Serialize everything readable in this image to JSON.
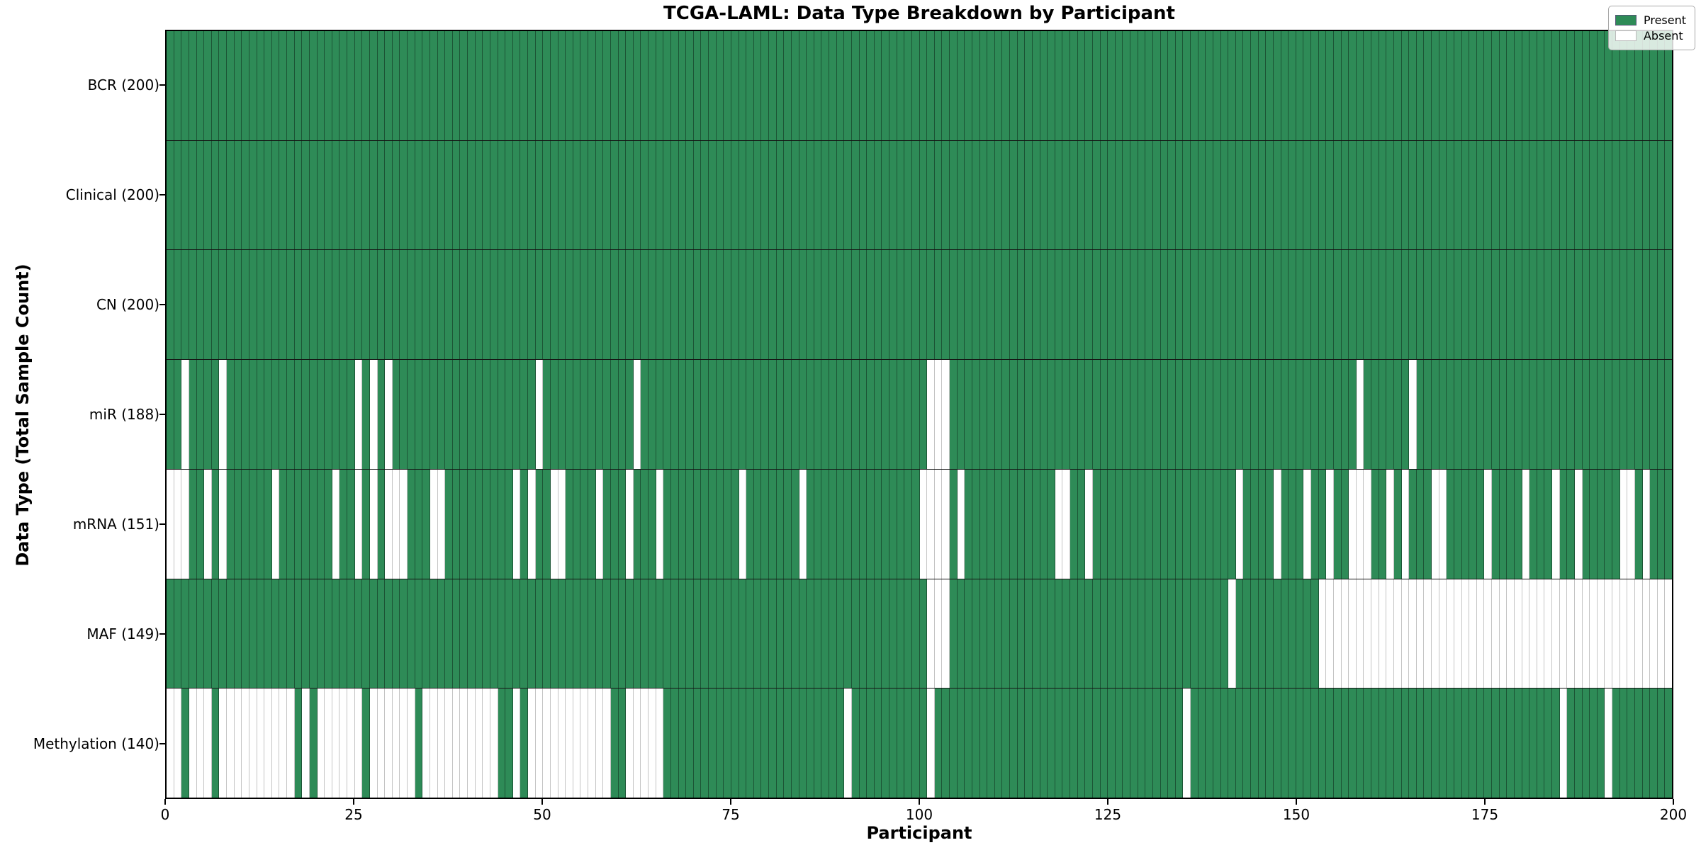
{
  "title": "TCGA-LAML: Data Type Breakdown by Participant",
  "xlabel": "Participant",
  "ylabel": "Data Type (Total Sample Count)",
  "legend": {
    "present_label": "Present",
    "absent_label": "Absent"
  },
  "colors": {
    "present": "#2e8b57",
    "absent": "#ffffff",
    "row_divider": "#141414",
    "plot_border": "#000000"
  },
  "chart_data": {
    "type": "heatmap",
    "title": "TCGA-LAML: Data Type Breakdown by Participant",
    "xlabel": "Participant",
    "ylabel": "Data Type (Total Sample Count)",
    "legend_entries": [
      "Present",
      "Absent"
    ],
    "legend_position": "upper right",
    "x_range": [
      0,
      200
    ],
    "x_ticks": [
      0,
      25,
      50,
      75,
      100,
      125,
      150,
      175,
      200
    ],
    "n_columns": 200,
    "cell_values": {
      "present": 1,
      "absent": 0
    },
    "rows": [
      {
        "label": "BCR (200)",
        "total": 200,
        "absent": []
      },
      {
        "label": "Clinical (200)",
        "total": 200,
        "absent": []
      },
      {
        "label": "CN (200)",
        "total": 200,
        "absent": []
      },
      {
        "label": "miR (188)",
        "total": 188,
        "absent": [
          2,
          7,
          25,
          27,
          29,
          49,
          62,
          101,
          102,
          103,
          158,
          165
        ]
      },
      {
        "label": "mRNA (151)",
        "total": 151,
        "absent": [
          0,
          1,
          2,
          5,
          7,
          14,
          22,
          25,
          27,
          29,
          30,
          31,
          35,
          36,
          46,
          48,
          51,
          52,
          57,
          61,
          65,
          76,
          84,
          100,
          101,
          102,
          103,
          105,
          118,
          119,
          122,
          142,
          147,
          151,
          154,
          157,
          158,
          159,
          162,
          164,
          168,
          169,
          175,
          180,
          184,
          187,
          193,
          194,
          196
        ]
      },
      {
        "label": "MAF (149)",
        "total": 149,
        "absent": [
          101,
          102,
          103,
          141,
          153,
          154,
          155,
          156,
          157,
          158,
          159,
          160,
          161,
          162,
          163,
          164,
          165,
          166,
          167,
          168,
          169,
          170,
          171,
          172,
          173,
          174,
          175,
          176,
          177,
          178,
          179,
          180,
          181,
          182,
          183,
          184,
          185,
          186,
          187,
          188,
          189,
          190,
          191,
          192,
          193,
          194,
          195,
          196,
          197,
          198,
          199
        ]
      },
      {
        "label": "Methylation (140)",
        "total": 140,
        "absent": [
          0,
          1,
          3,
          4,
          5,
          7,
          8,
          9,
          10,
          11,
          12,
          13,
          14,
          15,
          16,
          18,
          20,
          21,
          22,
          23,
          24,
          25,
          27,
          28,
          29,
          30,
          31,
          32,
          34,
          35,
          36,
          37,
          38,
          39,
          40,
          41,
          42,
          43,
          46,
          48,
          49,
          50,
          51,
          52,
          53,
          54,
          55,
          56,
          57,
          58,
          61,
          62,
          63,
          64,
          65,
          90,
          101,
          135,
          185,
          191
        ]
      }
    ]
  }
}
